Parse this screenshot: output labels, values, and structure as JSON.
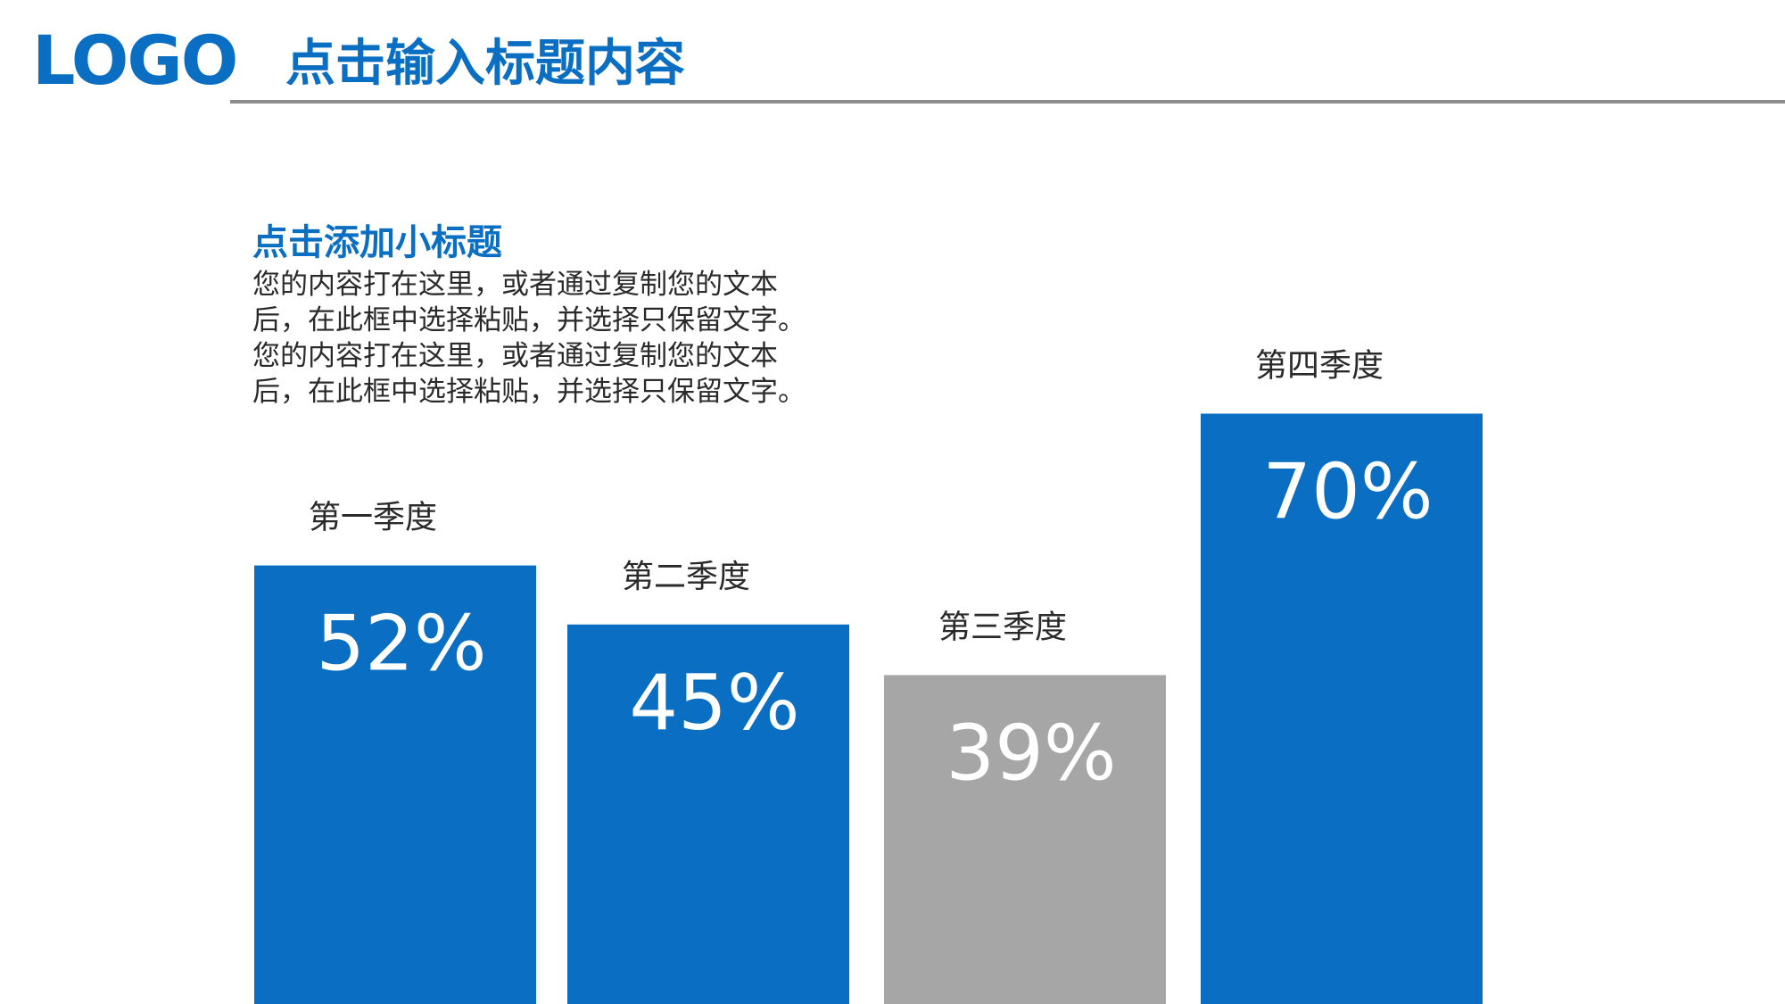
{
  "header": {
    "logo": "LOGO",
    "title": "点击输入标题内容"
  },
  "content": {
    "subtitle": "点击添加小标题",
    "body_lines": [
      "您的内容打在这里，或者通过复制您的文本",
      "后，在此框中选择粘贴，并选择只保留文字。",
      "您的内容打在这里，或者通过复制您的文本",
      "后，在此框中选择粘贴，并选择只保留文字。"
    ]
  },
  "colors": {
    "brand_blue": "#0a6fc2",
    "highlight_gray": "#a6a6a6",
    "rule_gray": "#8c8c8c",
    "text_dark": "#2a2a2a"
  },
  "chart_data": {
    "type": "bar",
    "categories": [
      "第一季度",
      "第二季度",
      "第三季度",
      "第四季度"
    ],
    "values": [
      52,
      45,
      39,
      70
    ],
    "value_labels": [
      "52%",
      "45%",
      "39%",
      "70%"
    ],
    "bar_colors": [
      "#0a6fc2",
      "#0a6fc2",
      "#a6a6a6",
      "#0a6fc2"
    ],
    "ylim": [
      0,
      100
    ],
    "grid": false,
    "legend": "none"
  }
}
